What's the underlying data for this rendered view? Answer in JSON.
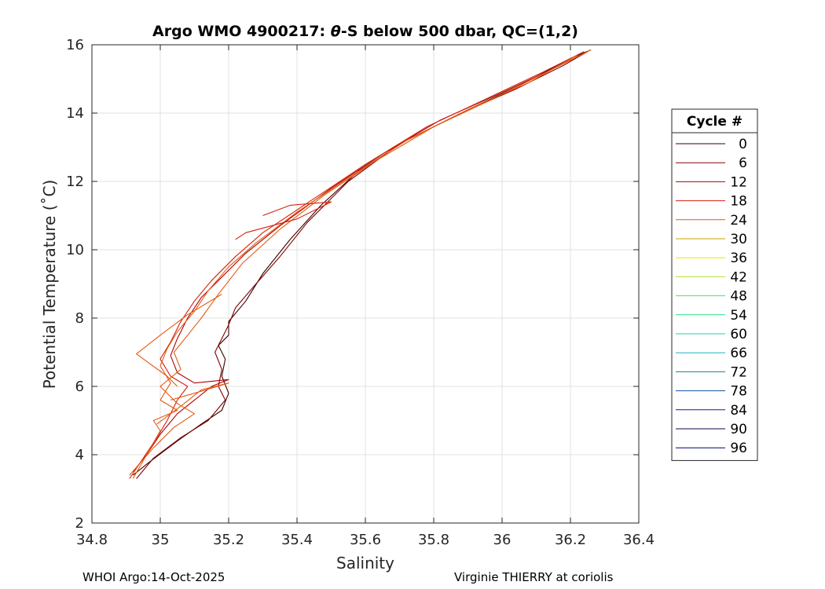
{
  "chart_data": {
    "type": "line",
    "title_prefix": "Argo WMO 4900217: ",
    "title_theta": "θ",
    "title_suffix": "-S below 500 dbar,  QC=(1,2)",
    "xlabel": "Salinity",
    "ylabel": "Potential Temperature (˚C)",
    "xlim": [
      34.8,
      36.4
    ],
    "ylim": [
      2,
      16
    ],
    "xticks": [
      34.8,
      35,
      35.2,
      35.4,
      35.6,
      35.8,
      36,
      36.2,
      36.4
    ],
    "xtick_labels": [
      "34.8",
      "35",
      "35.2",
      "35.4",
      "35.6",
      "35.8",
      "36",
      "36.2",
      "36.4"
    ],
    "yticks": [
      2,
      4,
      6,
      8,
      10,
      12,
      14,
      16
    ],
    "ytick_labels": [
      "2",
      "4",
      "6",
      "8",
      "10",
      "12",
      "14",
      "16"
    ],
    "grid": true,
    "legend": {
      "title": "Cycle #",
      "placement": "right",
      "entries": [
        {
          "label": "0",
          "color": "#3a0000"
        },
        {
          "label": "6",
          "color": "#800000"
        },
        {
          "label": "12",
          "color": "#b00000"
        },
        {
          "label": "18",
          "color": "#d62010"
        },
        {
          "label": "24",
          "color": "#e35a10"
        },
        {
          "label": "30",
          "color": "#c9a000"
        },
        {
          "label": "36",
          "color": "#f0e000"
        },
        {
          "label": "42",
          "color": "#b0e030"
        },
        {
          "label": "48",
          "color": "#50e050"
        },
        {
          "label": "54",
          "color": "#20e080"
        },
        {
          "label": "60",
          "color": "#20d0b0"
        },
        {
          "label": "66",
          "color": "#20b0c0"
        },
        {
          "label": "72",
          "color": "#108090"
        },
        {
          "label": "78",
          "color": "#1050a0"
        },
        {
          "label": "84",
          "color": "#102080"
        },
        {
          "label": "90",
          "color": "#0a0a50"
        },
        {
          "label": "96",
          "color": "#000080"
        }
      ]
    },
    "series": [
      {
        "name": "cycle-0",
        "color": "#3a0000",
        "points": [
          [
            34.92,
            3.4
          ],
          [
            34.97,
            3.8
          ],
          [
            35.05,
            4.4
          ],
          [
            35.12,
            4.9
          ],
          [
            35.18,
            5.3
          ],
          [
            35.2,
            5.8
          ],
          [
            35.18,
            6.3
          ],
          [
            35.19,
            6.8
          ],
          [
            35.17,
            7.2
          ],
          [
            35.2,
            7.5
          ],
          [
            35.2,
            7.9
          ],
          [
            35.25,
            8.5
          ],
          [
            35.3,
            9.3
          ],
          [
            35.38,
            10.3
          ],
          [
            35.47,
            11.3
          ],
          [
            35.58,
            12.3
          ],
          [
            35.72,
            13.2
          ],
          [
            35.9,
            14.1
          ],
          [
            36.05,
            14.8
          ],
          [
            36.2,
            15.6
          ],
          [
            36.26,
            15.85
          ]
        ]
      },
      {
        "name": "cycle-6",
        "color": "#800000",
        "points": [
          [
            34.93,
            3.3
          ],
          [
            34.98,
            3.9
          ],
          [
            35.06,
            4.5
          ],
          [
            35.14,
            5.0
          ],
          [
            35.19,
            5.6
          ],
          [
            35.17,
            6.0
          ],
          [
            35.18,
            6.5
          ],
          [
            35.16,
            7.0
          ],
          [
            35.18,
            7.4
          ],
          [
            35.2,
            7.8
          ],
          [
            35.22,
            8.3
          ],
          [
            35.28,
            9.0
          ],
          [
            35.35,
            9.8
          ],
          [
            35.43,
            10.8
          ],
          [
            35.55,
            12.0
          ],
          [
            35.7,
            13.1
          ],
          [
            35.88,
            14.0
          ],
          [
            36.04,
            14.7
          ],
          [
            36.18,
            15.4
          ],
          [
            36.25,
            15.8
          ]
        ]
      },
      {
        "name": "cycle-12",
        "color": "#b00000",
        "points": [
          [
            34.92,
            3.5
          ],
          [
            34.96,
            4.0
          ],
          [
            35.0,
            4.6
          ],
          [
            35.05,
            5.2
          ],
          [
            35.1,
            5.6
          ],
          [
            35.15,
            6.0
          ],
          [
            35.2,
            6.2
          ],
          [
            35.1,
            6.1
          ],
          [
            35.05,
            6.4
          ],
          [
            35.03,
            6.9
          ],
          [
            35.05,
            7.4
          ],
          [
            35.08,
            8.0
          ],
          [
            35.12,
            8.6
          ],
          [
            35.18,
            9.2
          ],
          [
            35.25,
            9.9
          ],
          [
            35.35,
            10.7
          ],
          [
            35.5,
            11.8
          ],
          [
            35.65,
            12.8
          ],
          [
            35.82,
            13.8
          ],
          [
            36.0,
            14.6
          ],
          [
            36.15,
            15.3
          ],
          [
            36.25,
            15.8
          ]
        ]
      },
      {
        "name": "cycle-18",
        "color": "#d62010",
        "points": [
          [
            34.91,
            3.3
          ],
          [
            34.95,
            3.9
          ],
          [
            34.99,
            4.5
          ],
          [
            35.02,
            5.0
          ],
          [
            35.05,
            5.6
          ],
          [
            35.08,
            6.0
          ],
          [
            35.03,
            6.3
          ],
          [
            35.0,
            6.8
          ],
          [
            35.03,
            7.3
          ],
          [
            35.06,
            7.9
          ],
          [
            35.1,
            8.5
          ],
          [
            35.15,
            9.1
          ],
          [
            35.22,
            9.8
          ],
          [
            35.3,
            10.5
          ],
          [
            35.45,
            11.5
          ],
          [
            35.6,
            12.5
          ],
          [
            35.78,
            13.6
          ],
          [
            35.95,
            14.4
          ],
          [
            36.12,
            15.2
          ],
          [
            36.24,
            15.8
          ]
        ]
      },
      {
        "name": "cycle-24",
        "color": "#e35a10",
        "points": [
          [
            34.92,
            3.3
          ],
          [
            34.96,
            4.0
          ],
          [
            35.0,
            4.7
          ],
          [
            34.98,
            5.0
          ],
          [
            35.05,
            5.3
          ],
          [
            35.0,
            5.6
          ],
          [
            35.03,
            6.1
          ],
          [
            35.0,
            6.6
          ],
          [
            35.02,
            7.1
          ],
          [
            35.05,
            7.6
          ],
          [
            35.1,
            8.2
          ],
          [
            35.14,
            8.8
          ],
          [
            35.2,
            9.5
          ],
          [
            35.28,
            10.2
          ],
          [
            35.4,
            11.1
          ],
          [
            35.55,
            12.1
          ],
          [
            35.72,
            13.2
          ],
          [
            35.9,
            14.1
          ],
          [
            36.08,
            14.9
          ],
          [
            36.22,
            15.7
          ]
        ]
      },
      {
        "name": "cycle-24b",
        "color": "#e35a10",
        "points": [
          [
            34.91,
            3.4
          ],
          [
            34.98,
            4.2
          ],
          [
            35.04,
            4.8
          ],
          [
            35.1,
            5.2
          ],
          [
            35.05,
            5.5
          ],
          [
            35.0,
            6.0
          ],
          [
            35.06,
            6.5
          ],
          [
            35.04,
            7.0
          ],
          [
            35.08,
            7.5
          ],
          [
            35.12,
            8.0
          ],
          [
            35.17,
            8.7
          ],
          [
            35.24,
            9.6
          ],
          [
            35.35,
            10.6
          ],
          [
            35.48,
            11.6
          ],
          [
            35.63,
            12.6
          ],
          [
            35.8,
            13.6
          ],
          [
            35.97,
            14.4
          ],
          [
            36.15,
            15.3
          ],
          [
            36.26,
            15.85
          ]
        ]
      },
      {
        "name": "cycle-anomaly-1",
        "color": "#e35a10",
        "points": [
          [
            35.05,
            6.0
          ],
          [
            35.02,
            6.3
          ],
          [
            34.93,
            6.95
          ],
          [
            35.0,
            7.5
          ],
          [
            35.08,
            8.1
          ],
          [
            35.18,
            8.7
          ]
        ]
      },
      {
        "name": "cycle-anomaly-2",
        "color": "#d62010",
        "points": [
          [
            35.22,
            10.3
          ],
          [
            35.25,
            10.5
          ],
          [
            35.4,
            10.9
          ],
          [
            35.5,
            11.4
          ],
          [
            35.38,
            11.3
          ],
          [
            35.3,
            11.0
          ]
        ]
      },
      {
        "name": "cycle-anomaly-3",
        "color": "#e35a10",
        "points": [
          [
            34.99,
            4.9
          ],
          [
            35.07,
            5.5
          ],
          [
            35.12,
            5.9
          ],
          [
            35.2,
            6.1
          ],
          [
            35.1,
            5.8
          ],
          [
            35.03,
            5.6
          ]
        ]
      }
    ]
  },
  "footer": {
    "left": "WHOI Argo:14-Oct-2025",
    "right": "Virginie THIERRY at coriolis"
  }
}
